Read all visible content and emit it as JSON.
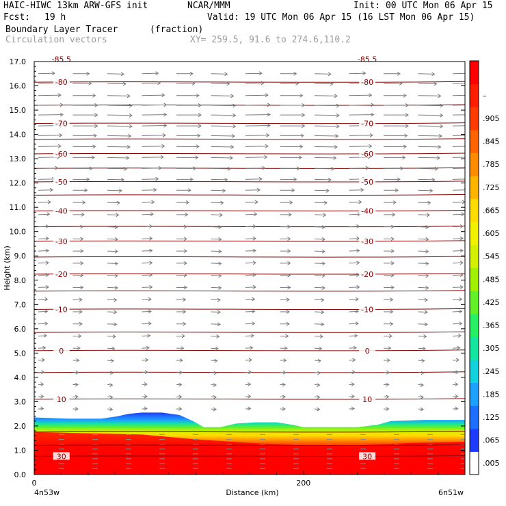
{
  "header": {
    "model": "HAIC-HIWC 13km ARW-GFS init",
    "org": "NCAR/MMM",
    "init": "Init: 00 UTC Mon 06 Apr 15",
    "fcst_label": "Fcst:",
    "fcst_value": "19 h",
    "valid": "Valid: 19 UTC Mon 06 Apr 15 (16 LST Mon 06 Apr 15)",
    "field": "Boundary Layer Tracer",
    "units": "(fraction)",
    "vectors": "Circulation vectors",
    "xy": "XY= 259.5, 91.6 to 274.6,110.2"
  },
  "chart_data": {
    "type": "heatmap",
    "ylabel": "Height (km)",
    "xlabel": "Distance (km)",
    "ylim": [
      0,
      17
    ],
    "xlim": [
      0,
      320
    ],
    "yticks": [
      "0.0",
      "1.0",
      "2.0",
      "3.0",
      "4.0",
      "5.0",
      "6.0",
      "7.0",
      "8.0",
      "9.0",
      "10.0",
      "11.0",
      "12.0",
      "13.0",
      "14.0",
      "15.0",
      "16.0",
      "17.0"
    ],
    "xtick_value": 200,
    "xtick_label": "200",
    "xtick_zero": "0",
    "endpoints": {
      "left": "4n53w",
      "right": "6n51w"
    },
    "colorbar": {
      "labels": [
        ".005",
        ".065",
        ".125",
        ".185",
        ".245",
        ".305",
        ".365",
        ".425",
        ".485",
        ".545",
        ".605",
        ".665",
        ".725",
        ".785",
        ".845",
        ".905",
        "–"
      ],
      "colors": [
        "#ffffff",
        "#1e3cff",
        "#1e6eff",
        "#1ea0ff",
        "#14d2dc",
        "#14e6a0",
        "#28f064",
        "#64f028",
        "#a0f000",
        "#d2f000",
        "#f0f000",
        "#ffdc00",
        "#ffb400",
        "#ff8c00",
        "#ff6400",
        "#ff3c00",
        "#ff1e00",
        "#ff0000"
      ]
    },
    "tracer_top_km": [
      [
        0,
        2.35
      ],
      [
        25,
        2.3
      ],
      [
        50,
        2.3
      ],
      [
        62,
        2.4
      ],
      [
        70,
        2.5
      ],
      [
        80,
        2.55
      ],
      [
        95,
        2.55
      ],
      [
        108,
        2.45
      ],
      [
        118,
        2.2
      ],
      [
        126,
        1.95
      ],
      [
        138,
        1.95
      ],
      [
        150,
        2.1
      ],
      [
        165,
        2.15
      ],
      [
        180,
        2.15
      ],
      [
        192,
        2.05
      ],
      [
        200,
        1.95
      ],
      [
        240,
        1.95
      ],
      [
        255,
        2.05
      ],
      [
        265,
        2.2
      ],
      [
        290,
        2.25
      ],
      [
        320,
        2.25
      ]
    ],
    "tracer_red_top_km": [
      [
        0,
        1.75
      ],
      [
        40,
        1.7
      ],
      [
        80,
        1.65
      ],
      [
        120,
        1.45
      ],
      [
        160,
        1.3
      ],
      [
        200,
        1.2
      ],
      [
        240,
        1.2
      ],
      [
        280,
        1.3
      ],
      [
        320,
        1.35
      ]
    ],
    "isotherms": [
      {
        "label": "-85.5",
        "km": 17.1
      },
      {
        "label": "-80",
        "km": 16.15
      },
      {
        "label": "",
        "km": 15.2
      },
      {
        "label": "-70",
        "km": 14.45
      },
      {
        "label": "",
        "km": 13.8
      },
      {
        "label": "-60",
        "km": 13.2
      },
      {
        "label": "",
        "km": 12.6
      },
      {
        "label": "-50",
        "km": 12.05
      },
      {
        "label": "",
        "km": 11.5
      },
      {
        "label": "-40",
        "km": 10.85
      },
      {
        "label": "",
        "km": 10.2
      },
      {
        "label": "-30",
        "km": 9.6
      },
      {
        "label": "",
        "km": 8.95
      },
      {
        "label": "-20",
        "km": 8.25
      },
      {
        "label": "",
        "km": 7.55
      },
      {
        "label": "-10",
        "km": 6.8
      },
      {
        "label": "",
        "km": 5.85
      },
      {
        "label": "0",
        "km": 5.1
      },
      {
        "label": "",
        "km": 4.2
      },
      {
        "label": "10",
        "km": 3.1
      },
      {
        "label": "",
        "km": 1.75
      },
      {
        "label": "",
        "km": 1.2
      },
      {
        "label": "30",
        "km": 0.75
      }
    ],
    "wind_profile": [
      {
        "km": 16.5,
        "u": 0.6
      },
      {
        "km": 16.1,
        "u": 0.7
      },
      {
        "km": 15.6,
        "u": 0.9
      },
      {
        "km": 15.2,
        "u": 1.0
      },
      {
        "km": 14.8,
        "u": 1.0
      },
      {
        "km": 14.35,
        "u": 1.0
      },
      {
        "km": 13.95,
        "u": 0.95
      },
      {
        "km": 13.5,
        "u": 0.9
      },
      {
        "km": 13.05,
        "u": 0.85
      },
      {
        "km": 12.6,
        "u": 0.75
      },
      {
        "km": 12.15,
        "u": 0.6
      },
      {
        "km": 11.7,
        "u": 0.5
      },
      {
        "km": 11.2,
        "u": 0.4
      },
      {
        "km": 10.7,
        "u": 0.35
      },
      {
        "km": 10.2,
        "u": 0.3
      },
      {
        "km": 9.7,
        "u": 0.3
      },
      {
        "km": 9.2,
        "u": 0.3
      },
      {
        "km": 8.7,
        "u": 0.3
      },
      {
        "km": 8.2,
        "u": 0.3
      },
      {
        "km": 7.7,
        "u": 0.3
      },
      {
        "km": 7.2,
        "u": 0.25
      },
      {
        "km": 6.7,
        "u": 0.25
      },
      {
        "km": 6.2,
        "u": 0.25
      },
      {
        "km": 5.7,
        "u": 0.2
      },
      {
        "km": 5.2,
        "u": 0.15
      },
      {
        "km": 4.7,
        "u": 0.1
      },
      {
        "km": 4.2,
        "u": 0.08
      },
      {
        "km": 3.7,
        "u": 0.05
      },
      {
        "km": 3.2,
        "u": 0.05
      },
      {
        "km": 2.7,
        "u": 0.05
      }
    ],
    "grid": false
  }
}
